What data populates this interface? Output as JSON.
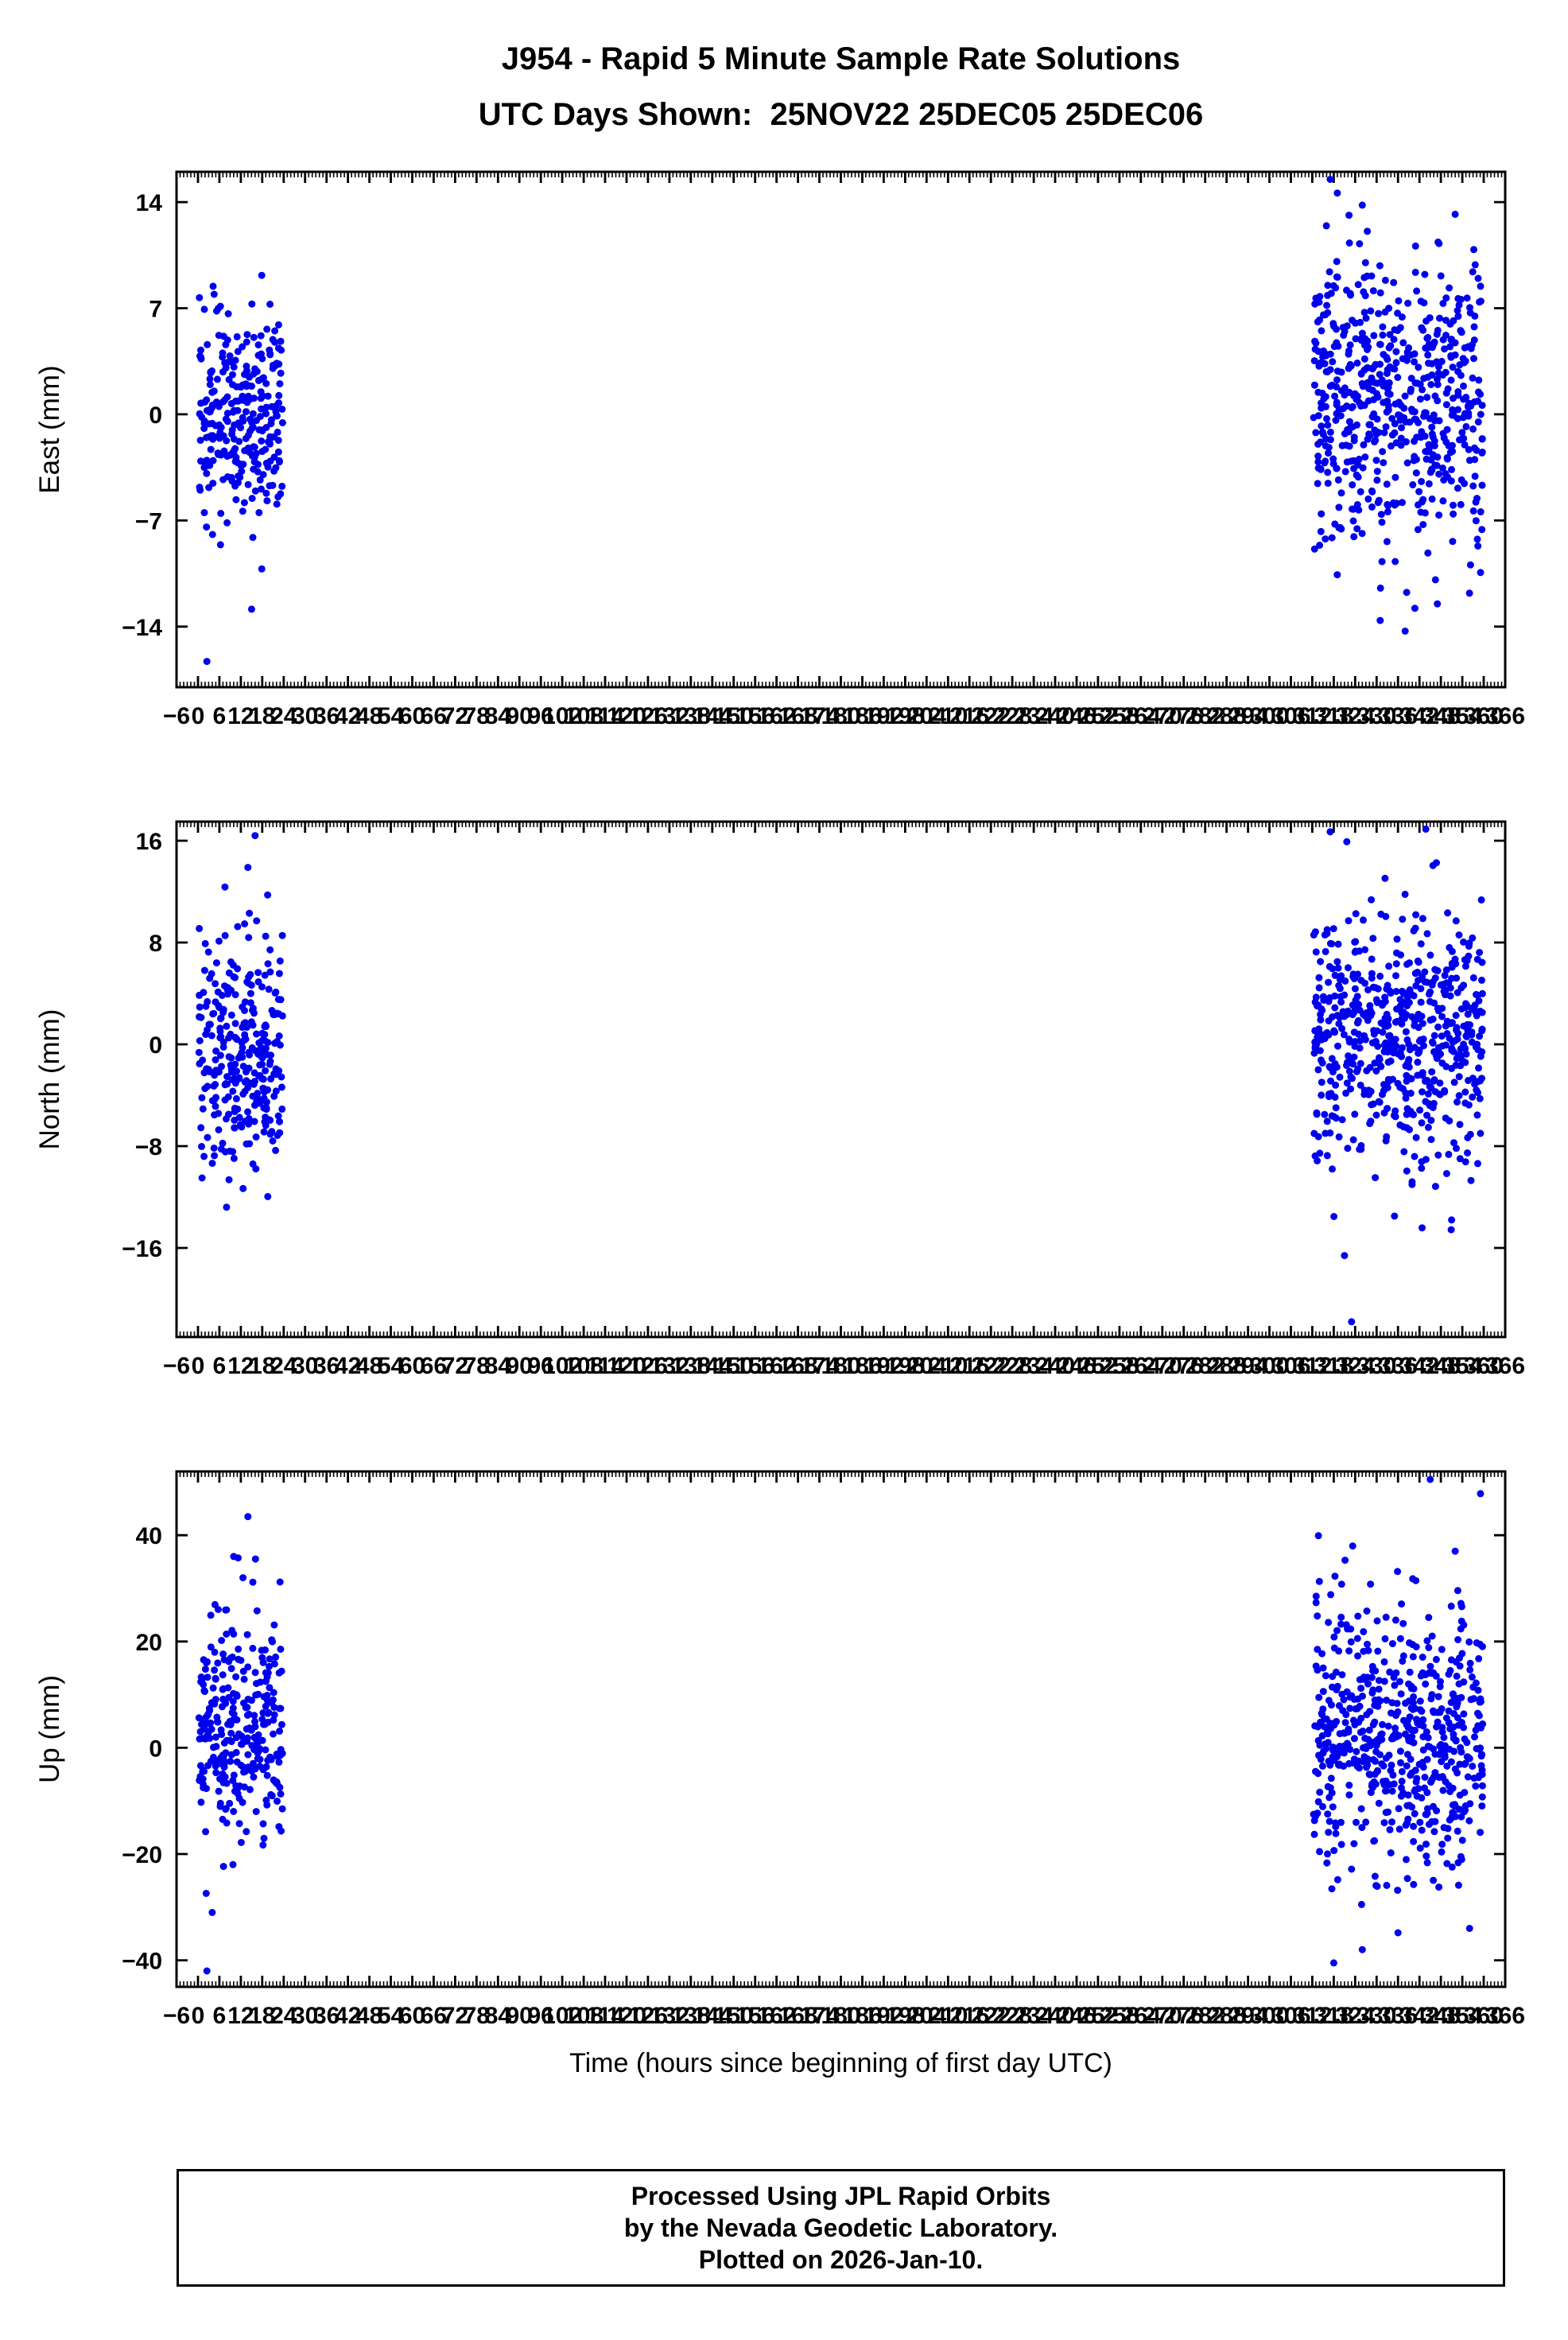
{
  "title": "J954 - Rapid 5 Minute Sample Rate Solutions",
  "subtitle": "UTC Days Shown:  25NOV22 25DEC05 25DEC06",
  "xlabel": "Time (hours since beginning of first day UTC)",
  "footer": {
    "line1": "Processed Using JPL Rapid Orbits",
    "line2": "by the Nevada Geodetic Laboratory.",
    "line3": "Plotted on 2026-Jan-10."
  },
  "chart_data": [
    {
      "type": "scatter",
      "ylabel": "East (mm)",
      "ylim": [
        -18,
        16
      ],
      "yticks": [
        -14,
        -7,
        0,
        7,
        14
      ],
      "xlim": [
        -6,
        366
      ],
      "xtick_step": 6,
      "xtick_minor_step": 1,
      "marker_color": "#0000ee",
      "marker_radius": 4.5,
      "grid": false,
      "clusters": [
        {
          "x_range": [
            0.3,
            23.7
          ],
          "n": 290,
          "mean": -0.4,
          "std": 3.3,
          "seed": 11
        },
        {
          "x_range": [
            312.3,
            359.7
          ],
          "n": 600,
          "mean": 0.9,
          "std": 4.4,
          "seed": 12
        }
      ],
      "extra_points": [
        [
          2.5,
          -16.3
        ],
        [
          317,
          15.5
        ],
        [
          319,
          14.6
        ],
        [
          326,
          13.8
        ],
        [
          352,
          13.2
        ],
        [
          338,
          -14.3
        ],
        [
          331,
          -13.6
        ],
        [
          356,
          -11.8
        ],
        [
          347,
          -12.5
        ]
      ]
    },
    {
      "type": "scatter",
      "ylabel": "North (mm)",
      "ylim": [
        -23,
        17.5
      ],
      "yticks": [
        -16,
        -8,
        0,
        8,
        16
      ],
      "xlim": [
        -6,
        366
      ],
      "xtick_step": 6,
      "xtick_minor_step": 1,
      "marker_color": "#0000ee",
      "marker_radius": 4.5,
      "grid": false,
      "clusters": [
        {
          "x_range": [
            0.3,
            23.7
          ],
          "n": 290,
          "mean": -0.3,
          "std": 4.8,
          "seed": 21
        },
        {
          "x_range": [
            312.3,
            359.7
          ],
          "n": 600,
          "mean": 0.8,
          "std": 4.6,
          "seed": 22
        }
      ],
      "extra_points": [
        [
          16,
          16.4
        ],
        [
          14,
          13.9
        ],
        [
          317,
          16.7
        ],
        [
          321,
          -16.6
        ],
        [
          323,
          -21.8
        ],
        [
          335,
          -13.5
        ],
        [
          351,
          -13.8
        ],
        [
          8,
          -12.8
        ]
      ]
    },
    {
      "type": "scatter",
      "ylabel": "Up (mm)",
      "ylim": [
        -45,
        52
      ],
      "yticks": [
        -40,
        -20,
        0,
        20,
        40
      ],
      "xlim": [
        -6,
        366
      ],
      "xtick_step": 6,
      "xtick_minor_step": 1,
      "marker_color": "#0000ee",
      "marker_radius": 4.5,
      "grid": false,
      "clusters": [
        {
          "x_range": [
            0.3,
            23.7
          ],
          "n": 290,
          "mean": 4.0,
          "std": 11.0,
          "seed": 31
        },
        {
          "x_range": [
            312.3,
            359.7
          ],
          "n": 600,
          "mean": 1.5,
          "std": 12.5,
          "seed": 32
        }
      ],
      "extra_points": [
        [
          14,
          43.5
        ],
        [
          10,
          36.0
        ],
        [
          345,
          50.5
        ],
        [
          352,
          37.0
        ],
        [
          2.5,
          -42.0
        ],
        [
          318,
          -40.5
        ],
        [
          326,
          -38.0
        ],
        [
          4,
          -31.0
        ]
      ]
    }
  ]
}
